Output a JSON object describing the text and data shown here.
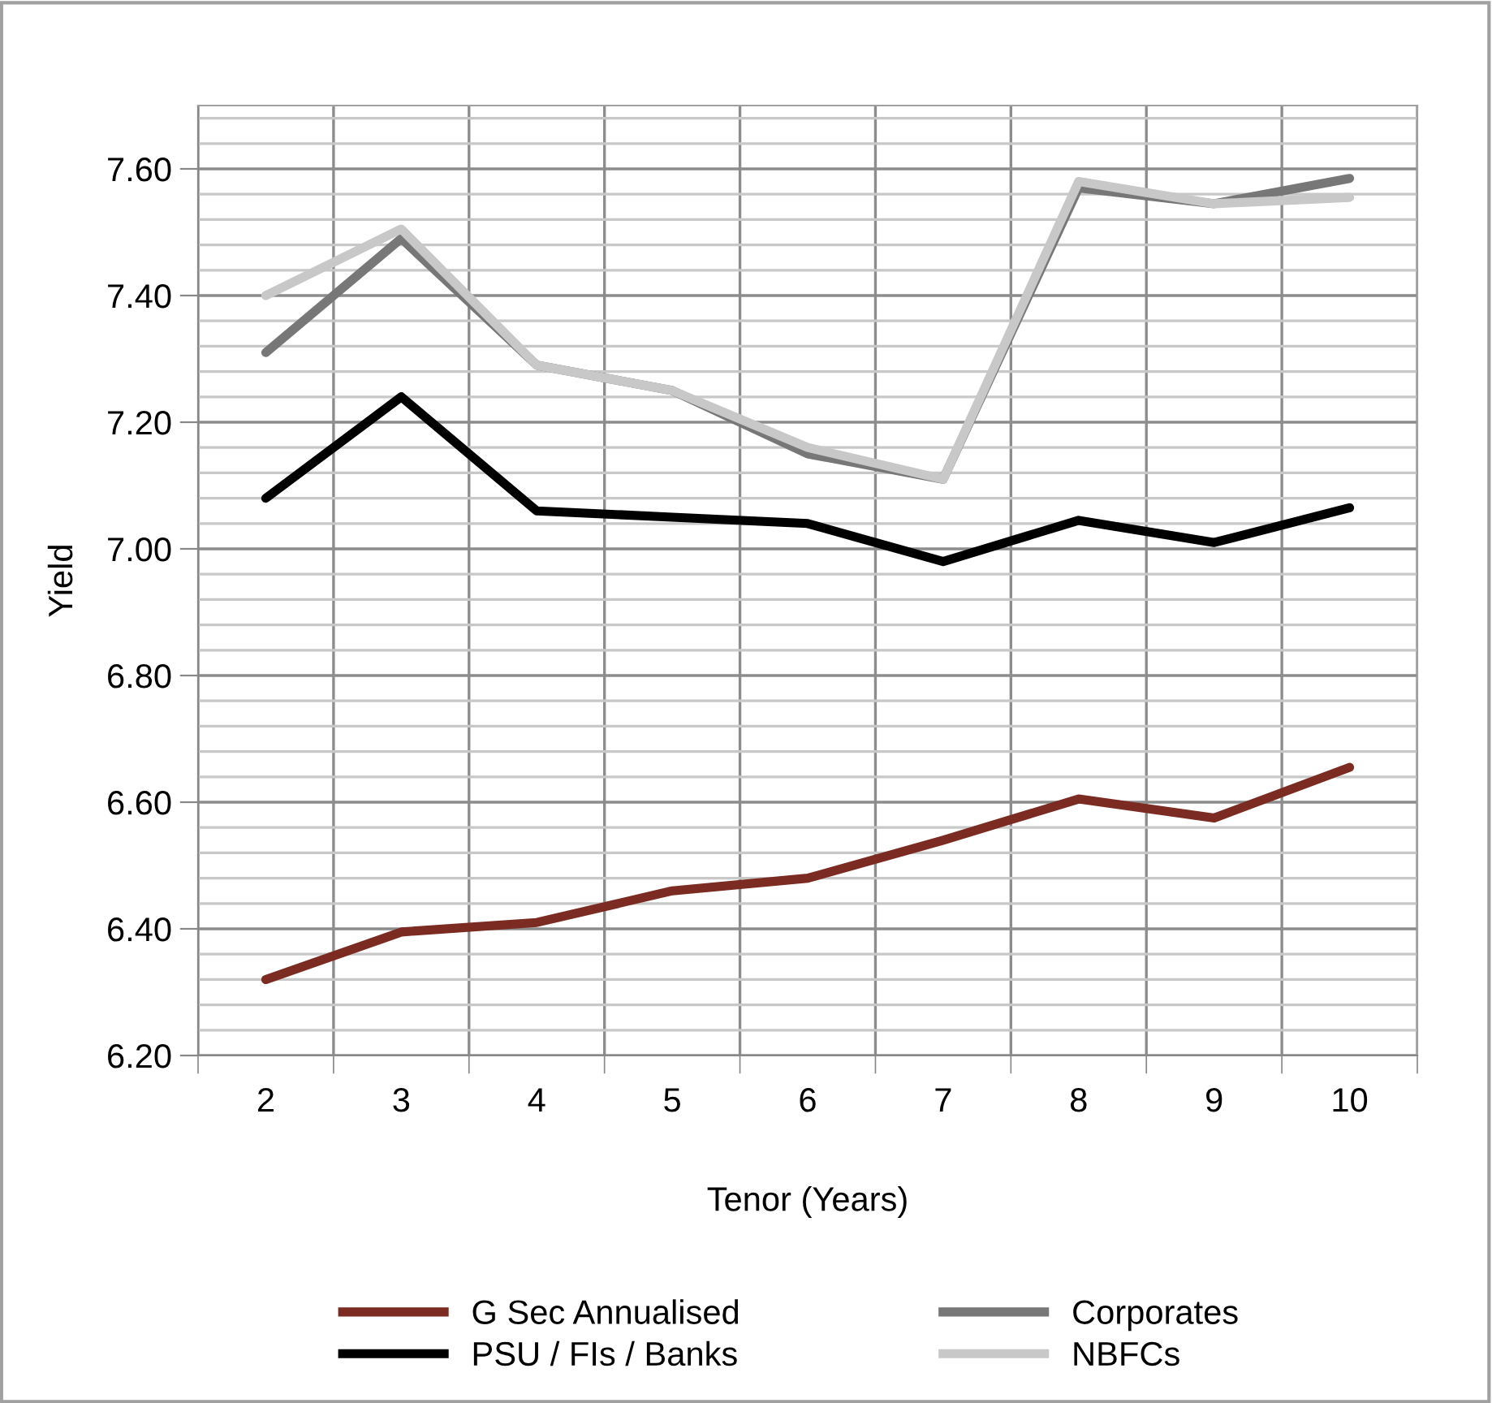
{
  "chart_data": {
    "type": "line",
    "xlabel": "Tenor (Years)",
    "ylabel": "Yield",
    "categories": [
      "2",
      "3",
      "4",
      "5",
      "6",
      "7",
      "8",
      "9",
      "10"
    ],
    "series": [
      {
        "name": "G Sec Annualised",
        "color": "#7b2b22",
        "values": [
          6.32,
          6.395,
          6.41,
          6.46,
          6.48,
          6.54,
          6.605,
          6.575,
          6.655
        ]
      },
      {
        "name": "PSU / FIs / Banks",
        "color": "#000000",
        "values": [
          7.08,
          7.24,
          7.06,
          7.05,
          7.04,
          6.98,
          7.045,
          7.01,
          7.065
        ]
      },
      {
        "name": "Corporates",
        "color": "#777777",
        "values": [
          7.31,
          7.49,
          7.29,
          7.25,
          7.15,
          7.11,
          7.57,
          7.545,
          7.585
        ]
      },
      {
        "name": "NBFCs",
        "color": "#c8c8c8",
        "values": [
          7.4,
          7.505,
          7.29,
          7.25,
          7.16,
          7.11,
          7.58,
          7.545,
          7.555
        ]
      }
    ],
    "ylim": [
      6.2,
      7.7
    ],
    "yticks": [
      {
        "value": 6.2,
        "label": "6.20"
      },
      {
        "value": 6.24,
        "label": null
      },
      {
        "value": 6.28,
        "label": null
      },
      {
        "value": 6.32,
        "label": null
      },
      {
        "value": 6.36,
        "label": null
      },
      {
        "value": 6.4,
        "label": "6.40"
      },
      {
        "value": 6.44,
        "label": null
      },
      {
        "value": 6.48,
        "label": null
      },
      {
        "value": 6.52,
        "label": null
      },
      {
        "value": 6.56,
        "label": null
      },
      {
        "value": 6.6,
        "label": "6.60"
      },
      {
        "value": 6.64,
        "label": null
      },
      {
        "value": 6.68,
        "label": null
      },
      {
        "value": 6.72,
        "label": null
      },
      {
        "value": 6.76,
        "label": null
      },
      {
        "value": 6.8,
        "label": "6.80"
      },
      {
        "value": 6.84,
        "label": null
      },
      {
        "value": 6.88,
        "label": null
      },
      {
        "value": 6.92,
        "label": null
      },
      {
        "value": 6.96,
        "label": null
      },
      {
        "value": 7.0,
        "label": "7.00"
      },
      {
        "value": 7.04,
        "label": null
      },
      {
        "value": 7.08,
        "label": null
      },
      {
        "value": 7.12,
        "label": null
      },
      {
        "value": 7.16,
        "label": null
      },
      {
        "value": 7.2,
        "label": "7.20"
      },
      {
        "value": 7.24,
        "label": null
      },
      {
        "value": 7.28,
        "label": null
      },
      {
        "value": 7.32,
        "label": null
      },
      {
        "value": 7.36,
        "label": null
      },
      {
        "value": 7.4,
        "label": "7.40"
      },
      {
        "value": 7.44,
        "label": null
      },
      {
        "value": 7.48,
        "label": null
      },
      {
        "value": 7.52,
        "label": null
      },
      {
        "value": 7.56,
        "label": null
      },
      {
        "value": 7.6,
        "label": "7.60"
      },
      {
        "value": 7.64,
        "label": null
      },
      {
        "value": 7.68,
        "label": null
      }
    ],
    "grid": true,
    "legend": "bottom",
    "marker": "none",
    "line_style": "solid"
  }
}
